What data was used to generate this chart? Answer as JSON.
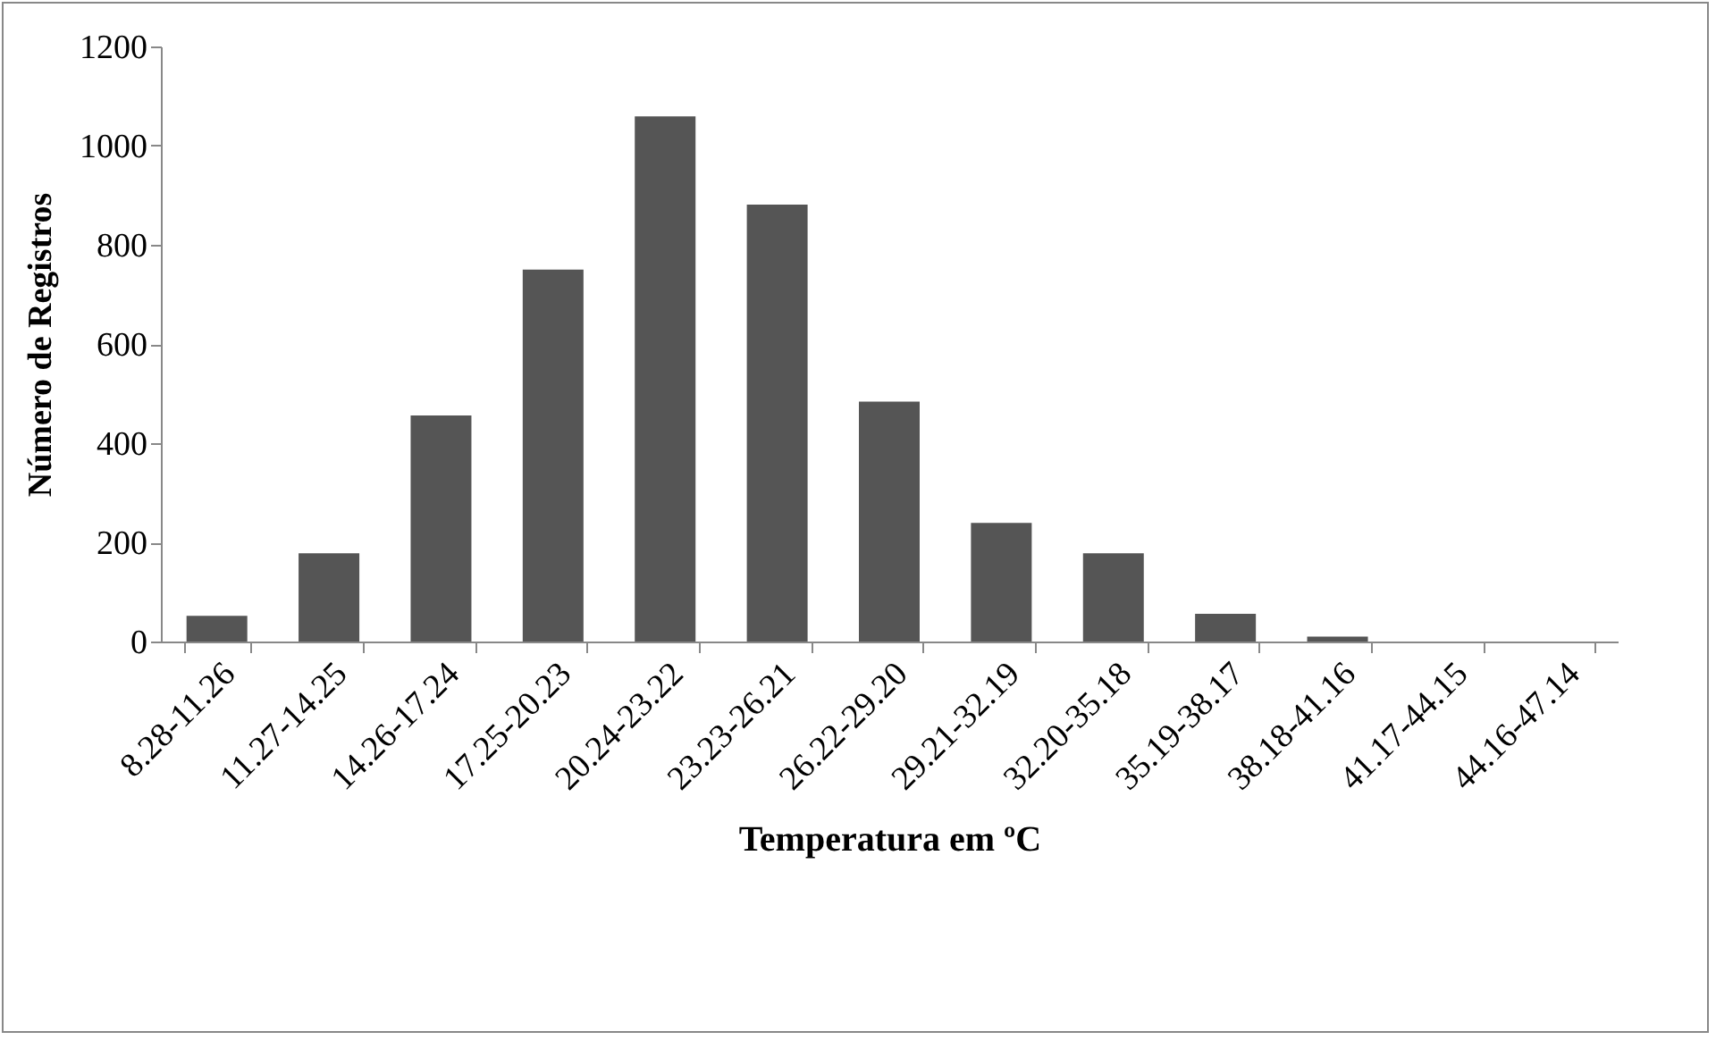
{
  "chart_data": {
    "type": "bar",
    "xlabel": "Temperatura em ºC",
    "ylabel": "Número de Registros",
    "categories": [
      "8.28-11.26",
      "11.27-14.25",
      "14.26-17.24",
      "17.25-20.23",
      "20.24-23.22",
      "23.23-26.21",
      "26.22-29.20",
      "29.21-32.19",
      "32.20-35.18",
      "35.19-38.17",
      "38.18-41.16",
      "41.17-44.15",
      "44.16-47.14"
    ],
    "values": [
      52,
      178,
      456,
      750,
      1059,
      881,
      484,
      239,
      178,
      56,
      10,
      0,
      0
    ],
    "color": "#555555",
    "ylim": [
      0,
      1200
    ],
    "yticks": [
      0,
      200,
      400,
      600,
      800,
      1000,
      1200
    ],
    "grid": false
  }
}
